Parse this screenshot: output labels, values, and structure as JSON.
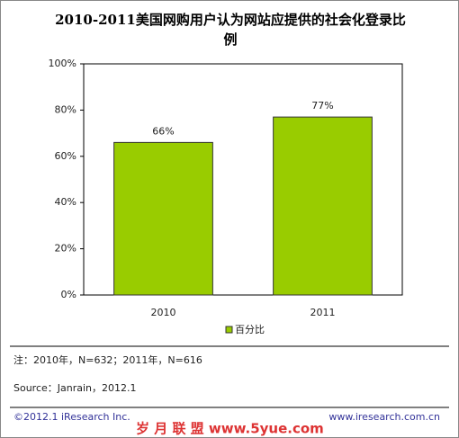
{
  "chart_data": {
    "type": "bar",
    "title": "2010-2011美国网购用户认为网站应提供的社会化登录比例",
    "categories": [
      "2010",
      "2011"
    ],
    "series": [
      {
        "name": "百分比",
        "color": "#99cc00",
        "values": [
          66,
          77
        ],
        "value_labels": [
          "66%",
          "77%"
        ]
      }
    ],
    "ylim": [
      0,
      100
    ],
    "yticks": [
      {
        "value": 0,
        "label": "0%"
      },
      {
        "value": 20,
        "label": "20%"
      },
      {
        "value": 40,
        "label": "40%"
      },
      {
        "value": 60,
        "label": "60%"
      },
      {
        "value": 80,
        "label": "80%"
      },
      {
        "value": 100,
        "label": "100%"
      }
    ],
    "legend": "bottom"
  },
  "notes": {
    "note": "注：2010年，N=632；2011年，N=616",
    "source": "Source：Janrain，2012.1"
  },
  "footer": {
    "copyright": "©2012.1 iResearch Inc.",
    "watermark": "岁 月 联 盟 www.5yue.com",
    "website": "www.iresearch.com.cn"
  }
}
